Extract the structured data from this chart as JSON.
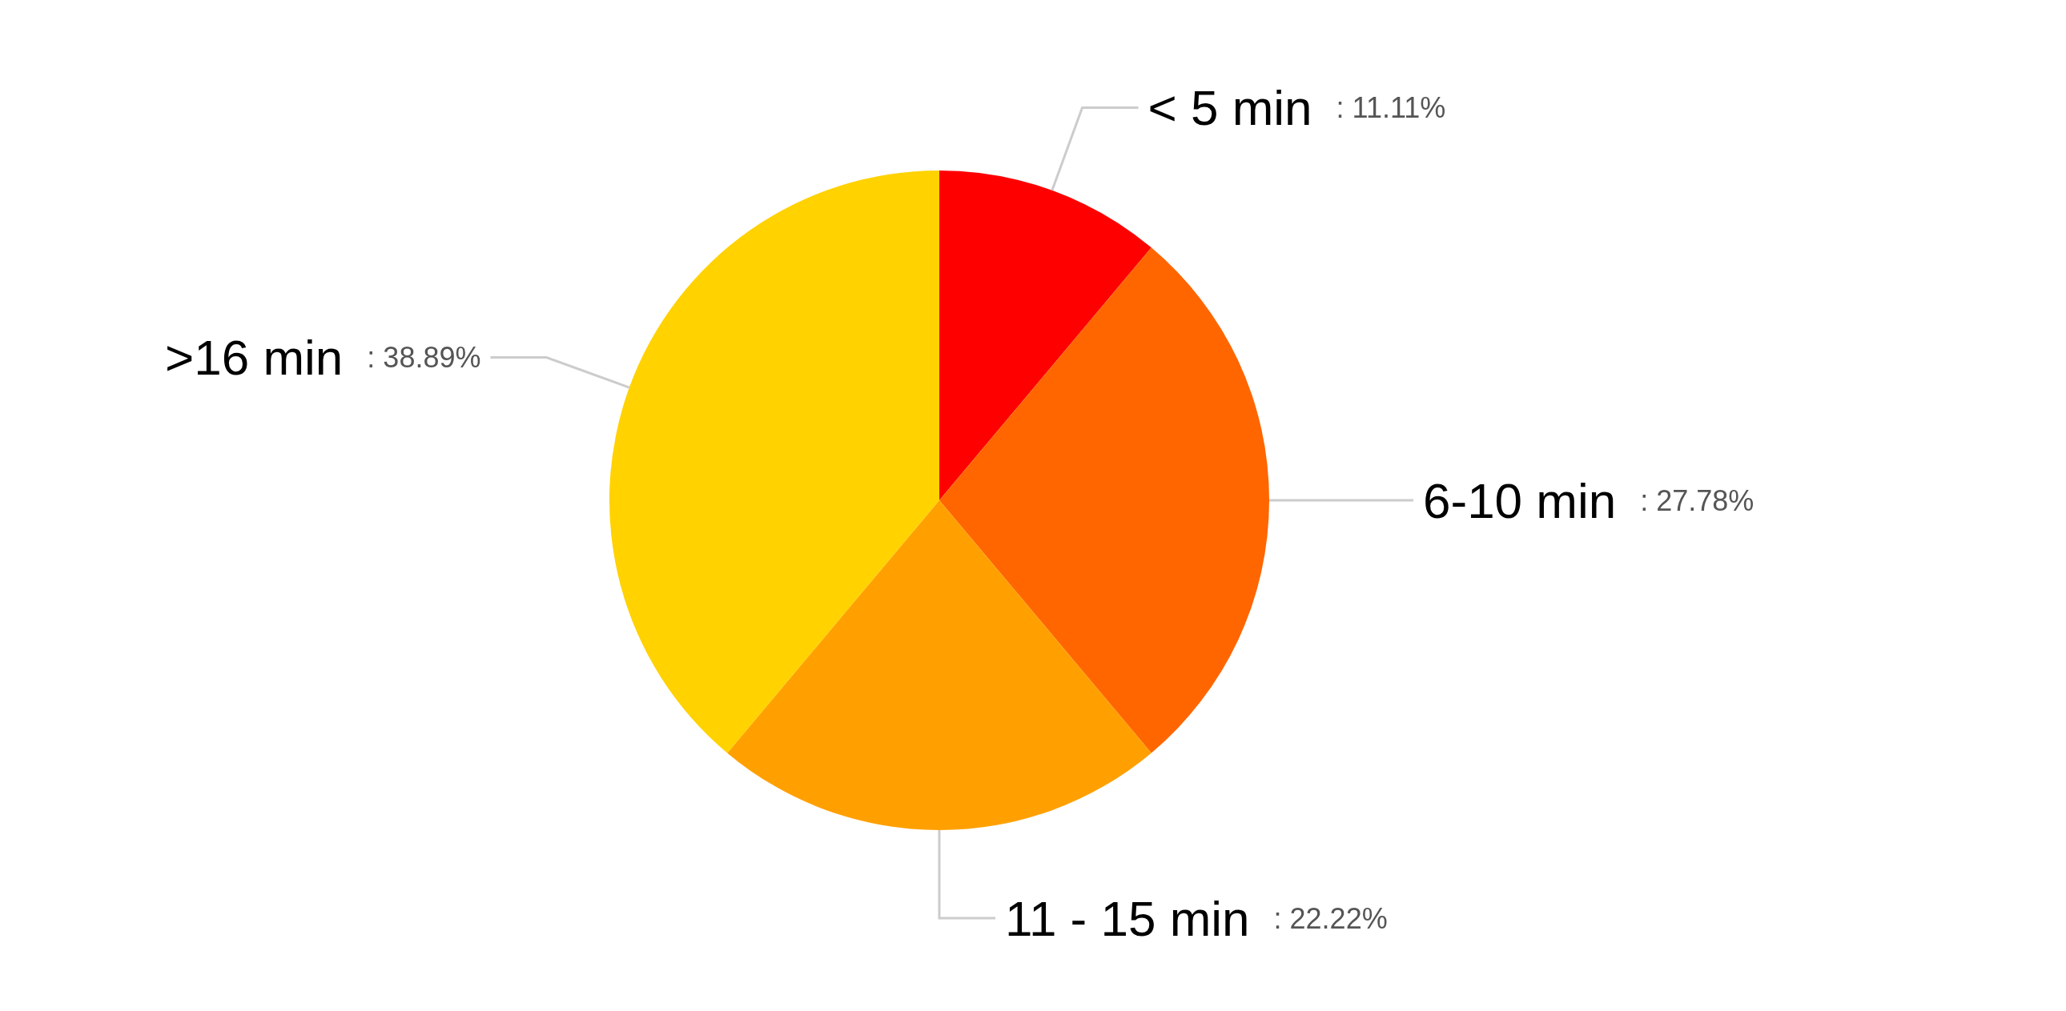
{
  "chart_data": {
    "type": "pie",
    "categories": [
      "< 5 min",
      "6-10 min",
      "11 - 15 min",
      ">16 min"
    ],
    "values": [
      11.11,
      27.78,
      22.22,
      38.89
    ],
    "colors": [
      "#ff0000",
      "#ff6600",
      "#ffa000",
      "#ffd200"
    ],
    "value_labels": [
      ": 11.11%",
      ": 27.78%",
      ": 22.22%",
      ": 38.89%"
    ]
  }
}
